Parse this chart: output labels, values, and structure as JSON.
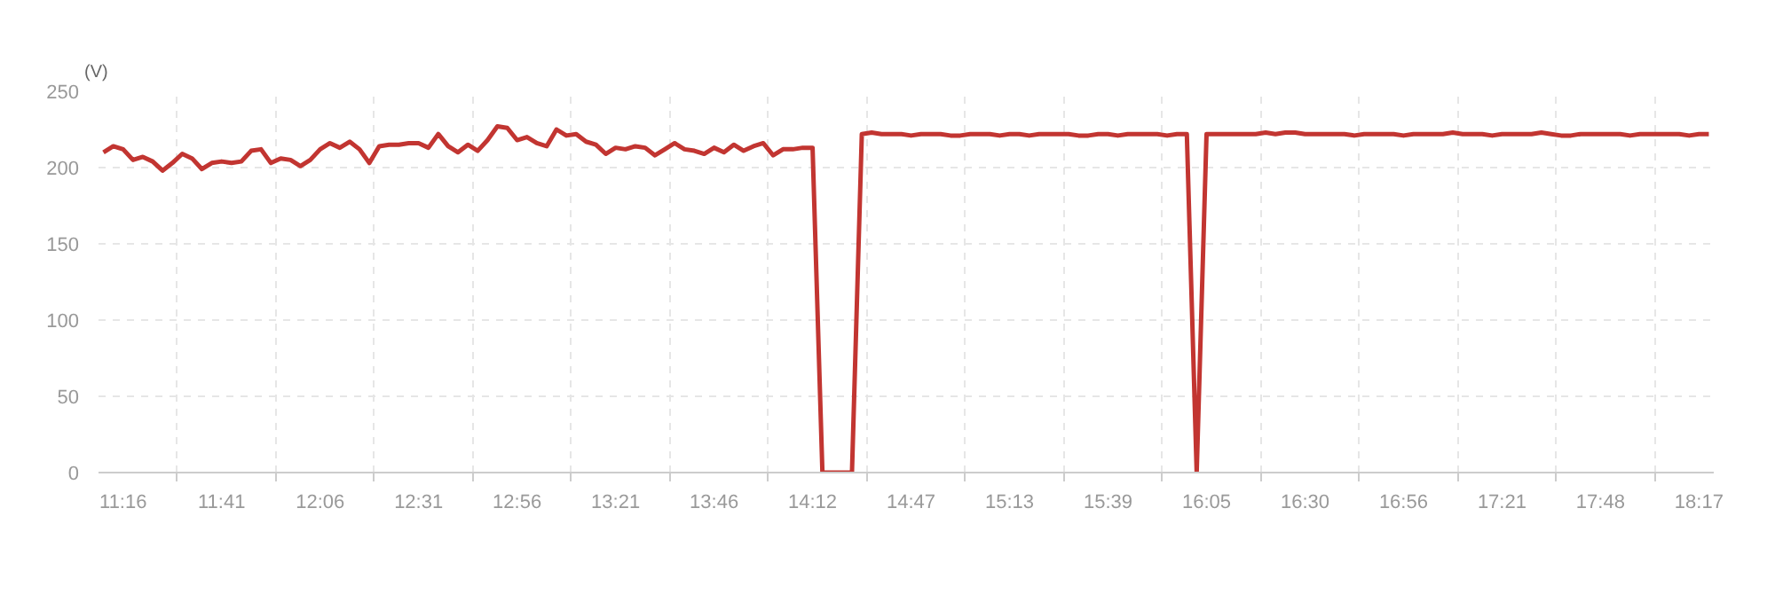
{
  "chart_data": {
    "type": "line",
    "ylabel": "(V)",
    "categories": [
      null,
      null,
      "11:16",
      null,
      null,
      null,
      null,
      null,
      null,
      null,
      null,
      null,
      "11:41",
      null,
      null,
      null,
      null,
      null,
      null,
      null,
      null,
      null,
      "12:06",
      null,
      null,
      null,
      null,
      null,
      null,
      null,
      null,
      null,
      "12:31",
      null,
      null,
      null,
      null,
      null,
      null,
      null,
      null,
      null,
      "12:56",
      null,
      null,
      null,
      null,
      null,
      null,
      null,
      null,
      null,
      "13:21",
      null,
      null,
      null,
      null,
      null,
      null,
      null,
      null,
      null,
      "13:46",
      null,
      null,
      null,
      null,
      null,
      null,
      null,
      null,
      null,
      "14:12",
      null,
      null,
      null,
      null,
      null,
      null,
      null,
      null,
      null,
      "14:47",
      null,
      null,
      null,
      null,
      null,
      null,
      null,
      null,
      null,
      "15:13",
      null,
      null,
      null,
      null,
      null,
      null,
      null,
      null,
      null,
      "15:39",
      null,
      null,
      null,
      null,
      null,
      null,
      null,
      null,
      null,
      "16:05",
      null,
      null,
      null,
      null,
      null,
      null,
      null,
      null,
      null,
      "16:30",
      null,
      null,
      null,
      null,
      null,
      null,
      null,
      null,
      null,
      "16:56",
      null,
      null,
      null,
      null,
      null,
      null,
      null,
      null,
      null,
      "17:21",
      null,
      null,
      null,
      null,
      null,
      null,
      null,
      null,
      null,
      "17:48",
      null,
      null,
      null,
      null,
      null,
      null,
      null,
      null,
      null,
      "18:17",
      null
    ],
    "series": [
      {
        "color": "#c23531",
        "values": [
          210,
          214,
          212,
          205,
          207,
          204,
          198,
          203,
          209,
          206,
          199,
          203,
          204,
          203,
          204,
          211,
          212,
          203,
          206,
          205,
          201,
          205,
          212,
          216,
          213,
          217,
          212,
          203,
          214,
          215,
          215,
          216,
          216,
          213,
          222,
          214,
          210,
          215,
          211,
          218,
          227,
          226,
          218,
          220,
          216,
          214,
          225,
          221,
          222,
          217,
          215,
          209,
          213,
          212,
          214,
          213,
          208,
          212,
          216,
          212,
          211,
          209,
          213,
          210,
          215,
          211,
          214,
          216,
          208,
          212,
          212,
          213,
          213,
          0,
          0,
          0,
          0,
          222,
          223,
          222,
          222,
          222,
          221,
          222,
          222,
          222,
          221,
          221,
          222,
          222,
          222,
          221,
          222,
          222,
          221,
          222,
          222,
          222,
          222,
          221,
          221,
          222,
          222,
          221,
          222,
          222,
          222,
          222,
          221,
          222,
          222,
          0,
          222,
          222,
          222,
          222,
          222,
          222,
          223,
          222,
          223,
          223,
          222,
          222,
          222,
          222,
          222,
          221,
          222,
          222,
          222,
          222,
          221,
          222,
          222,
          222,
          222,
          223,
          222,
          222,
          222,
          221,
          222,
          222,
          222,
          222,
          223,
          222,
          221,
          221,
          222,
          222,
          222,
          222,
          222,
          221,
          222,
          222,
          222,
          222,
          222,
          221,
          222,
          222
        ]
      }
    ],
    "ylim": [
      0,
      250
    ],
    "yticks": [
      0,
      50,
      100,
      150,
      200,
      250
    ],
    "grid": true,
    "line_style": "solid"
  }
}
